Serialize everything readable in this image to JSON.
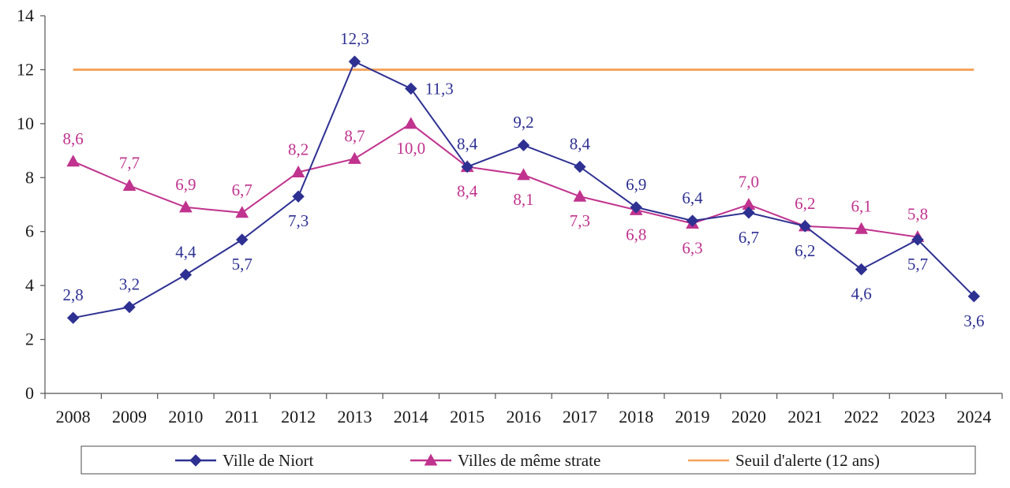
{
  "chart_data": {
    "type": "line",
    "title": "",
    "xlabel": "",
    "ylabel": "",
    "ylim": [
      0,
      14
    ],
    "yticks": [
      0,
      2,
      4,
      6,
      8,
      10,
      12,
      14
    ],
    "categories": [
      "2008",
      "2009",
      "2010",
      "2011",
      "2012",
      "2013",
      "2014",
      "2015",
      "2016",
      "2017",
      "2018",
      "2019",
      "2020",
      "2021",
      "2022",
      "2023",
      "2024"
    ],
    "series": [
      {
        "name": "Ville de Niort",
        "color": "#2e3192",
        "marker": "diamond",
        "values": [
          2.8,
          3.2,
          4.4,
          5.7,
          7.3,
          12.3,
          11.3,
          8.4,
          9.2,
          8.4,
          6.9,
          6.4,
          6.7,
          6.2,
          4.6,
          5.7,
          3.6
        ],
        "labels": [
          "2,8",
          "3,2",
          "4,4",
          "5,7",
          "7,3",
          "12,3",
          "11,3",
          "8,4",
          "9,2",
          "8,4",
          "6,9",
          "6,4",
          "6,7",
          "6,2",
          "4,6",
          "5,7",
          "3,6"
        ],
        "label_pos": [
          "above",
          "above",
          "above",
          "below",
          "below",
          "above",
          "right",
          "above",
          "above",
          "above",
          "above",
          "above",
          "below",
          "below",
          "below",
          "below",
          "below"
        ]
      },
      {
        "name": "Villes de même strate",
        "color": "#c0338e",
        "marker": "triangle",
        "values": [
          8.6,
          7.7,
          6.9,
          6.7,
          8.2,
          8.7,
          10.0,
          8.4,
          8.1,
          7.3,
          6.8,
          6.3,
          7.0,
          6.2,
          6.1,
          5.8,
          null
        ],
        "labels": [
          "8,6",
          "7,7",
          "6,9",
          "6,7",
          "8,2",
          "8,7",
          "10,0",
          "8,4",
          "8,1",
          "7,3",
          "6,8",
          "6,3",
          "7,0",
          "6,2",
          "6,1",
          "5,8",
          null
        ],
        "label_pos": [
          "above",
          "above",
          "above",
          "above",
          "above",
          "above",
          "below",
          "below",
          "below",
          "below",
          "below",
          "below",
          "above",
          "above",
          "above",
          "above",
          "above"
        ]
      },
      {
        "name": "Seuil d'alerte (12 ans)",
        "color": "#f5a35c",
        "marker": "none",
        "values": [
          12,
          12,
          12,
          12,
          12,
          12,
          12,
          12,
          12,
          12,
          12,
          12,
          12,
          12,
          12,
          12,
          12
        ],
        "labels": [],
        "label_pos": []
      }
    ],
    "legend_position": "bottom",
    "grid": false
  }
}
